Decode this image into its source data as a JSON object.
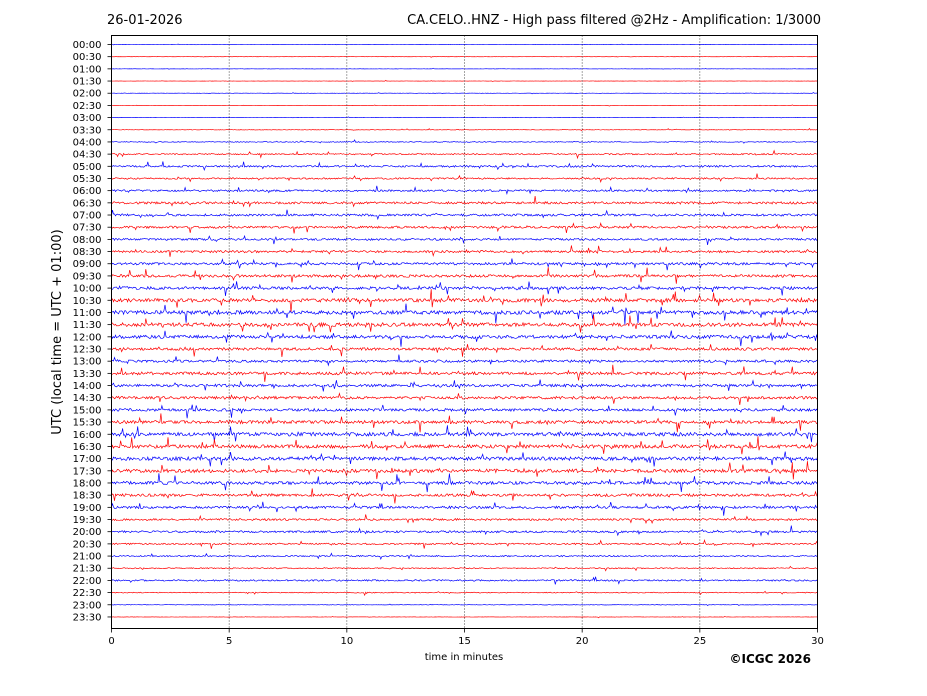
{
  "header": {
    "date": "26-01-2026",
    "title": "CA.CELO..HNZ - High pass filtered @2Hz - Amplification: 1/3000"
  },
  "footer": {
    "copyright": "©ICGC 2026"
  },
  "chart_data": {
    "type": "line",
    "subtype": "helicorder",
    "xlabel": "time in minutes",
    "ylabel": "UTC (local time = UTC + 01:00)",
    "xlim": [
      0,
      30
    ],
    "x_ticks": [
      "0",
      "5",
      "10",
      "15",
      "20",
      "25",
      "30"
    ],
    "x_tick_values": [
      0,
      5,
      10,
      15,
      20,
      25,
      30
    ],
    "grid": "vertical dotted at each 5 minutes",
    "colors": {
      "even_rows": "#0000ff",
      "odd_rows": "#ff0000",
      "grid": "#000000"
    },
    "rows": [
      {
        "label": "00:00",
        "color": "#0000ff",
        "activity": 0.05
      },
      {
        "label": "00:30",
        "color": "#ff0000",
        "activity": 0.05
      },
      {
        "label": "01:00",
        "color": "#0000ff",
        "activity": 0.05
      },
      {
        "label": "01:30",
        "color": "#ff0000",
        "activity": 0.05
      },
      {
        "label": "02:00",
        "color": "#0000ff",
        "activity": 0.06
      },
      {
        "label": "02:30",
        "color": "#ff0000",
        "activity": 0.05
      },
      {
        "label": "03:00",
        "color": "#0000ff",
        "activity": 0.06
      },
      {
        "label": "03:30",
        "color": "#ff0000",
        "activity": 0.1
      },
      {
        "label": "04:00",
        "color": "#0000ff",
        "activity": 0.18
      },
      {
        "label": "04:30",
        "color": "#ff0000",
        "activity": 0.3
      },
      {
        "label": "05:00",
        "color": "#0000ff",
        "activity": 0.4
      },
      {
        "label": "05:30",
        "color": "#ff0000",
        "activity": 0.35
      },
      {
        "label": "06:00",
        "color": "#0000ff",
        "activity": 0.4
      },
      {
        "label": "06:30",
        "color": "#ff0000",
        "activity": 0.5
      },
      {
        "label": "07:00",
        "color": "#0000ff",
        "activity": 0.5
      },
      {
        "label": "07:30",
        "color": "#ff0000",
        "activity": 0.5
      },
      {
        "label": "08:00",
        "color": "#0000ff",
        "activity": 0.45
      },
      {
        "label": "08:30",
        "color": "#ff0000",
        "activity": 0.5
      },
      {
        "label": "09:00",
        "color": "#0000ff",
        "activity": 0.55
      },
      {
        "label": "09:30",
        "color": "#ff0000",
        "activity": 0.6
      },
      {
        "label": "10:00",
        "color": "#0000ff",
        "activity": 0.65
      },
      {
        "label": "10:30",
        "color": "#ff0000",
        "activity": 0.8
      },
      {
        "label": "11:00",
        "color": "#0000ff",
        "activity": 0.85
      },
      {
        "label": "11:30",
        "color": "#ff0000",
        "activity": 0.85
      },
      {
        "label": "12:00",
        "color": "#0000ff",
        "activity": 0.75
      },
      {
        "label": "12:30",
        "color": "#ff0000",
        "activity": 0.6
      },
      {
        "label": "13:00",
        "color": "#0000ff",
        "activity": 0.55
      },
      {
        "label": "13:30",
        "color": "#ff0000",
        "activity": 0.65
      },
      {
        "label": "14:00",
        "color": "#0000ff",
        "activity": 0.6
      },
      {
        "label": "14:30",
        "color": "#ff0000",
        "activity": 0.6
      },
      {
        "label": "15:00",
        "color": "#0000ff",
        "activity": 0.6
      },
      {
        "label": "15:30",
        "color": "#ff0000",
        "activity": 0.7
      },
      {
        "label": "16:00",
        "color": "#0000ff",
        "activity": 0.8
      },
      {
        "label": "16:30",
        "color": "#ff0000",
        "activity": 0.8
      },
      {
        "label": "17:00",
        "color": "#0000ff",
        "activity": 0.8
      },
      {
        "label": "17:30",
        "color": "#ff0000",
        "activity": 0.8
      },
      {
        "label": "18:00",
        "color": "#0000ff",
        "activity": 0.7
      },
      {
        "label": "18:30",
        "color": "#ff0000",
        "activity": 0.6
      },
      {
        "label": "19:00",
        "color": "#0000ff",
        "activity": 0.55
      },
      {
        "label": "19:30",
        "color": "#ff0000",
        "activity": 0.45
      },
      {
        "label": "20:00",
        "color": "#0000ff",
        "activity": 0.45
      },
      {
        "label": "20:30",
        "color": "#ff0000",
        "activity": 0.35
      },
      {
        "label": "21:00",
        "color": "#0000ff",
        "activity": 0.3
      },
      {
        "label": "21:30",
        "color": "#ff0000",
        "activity": 0.25
      },
      {
        "label": "22:00",
        "color": "#0000ff",
        "activity": 0.35
      },
      {
        "label": "22:30",
        "color": "#ff0000",
        "activity": 0.2
      },
      {
        "label": "23:00",
        "color": "#0000ff",
        "activity": 0.1
      },
      {
        "label": "23:30",
        "color": "#ff0000",
        "activity": 0.06
      }
    ]
  }
}
